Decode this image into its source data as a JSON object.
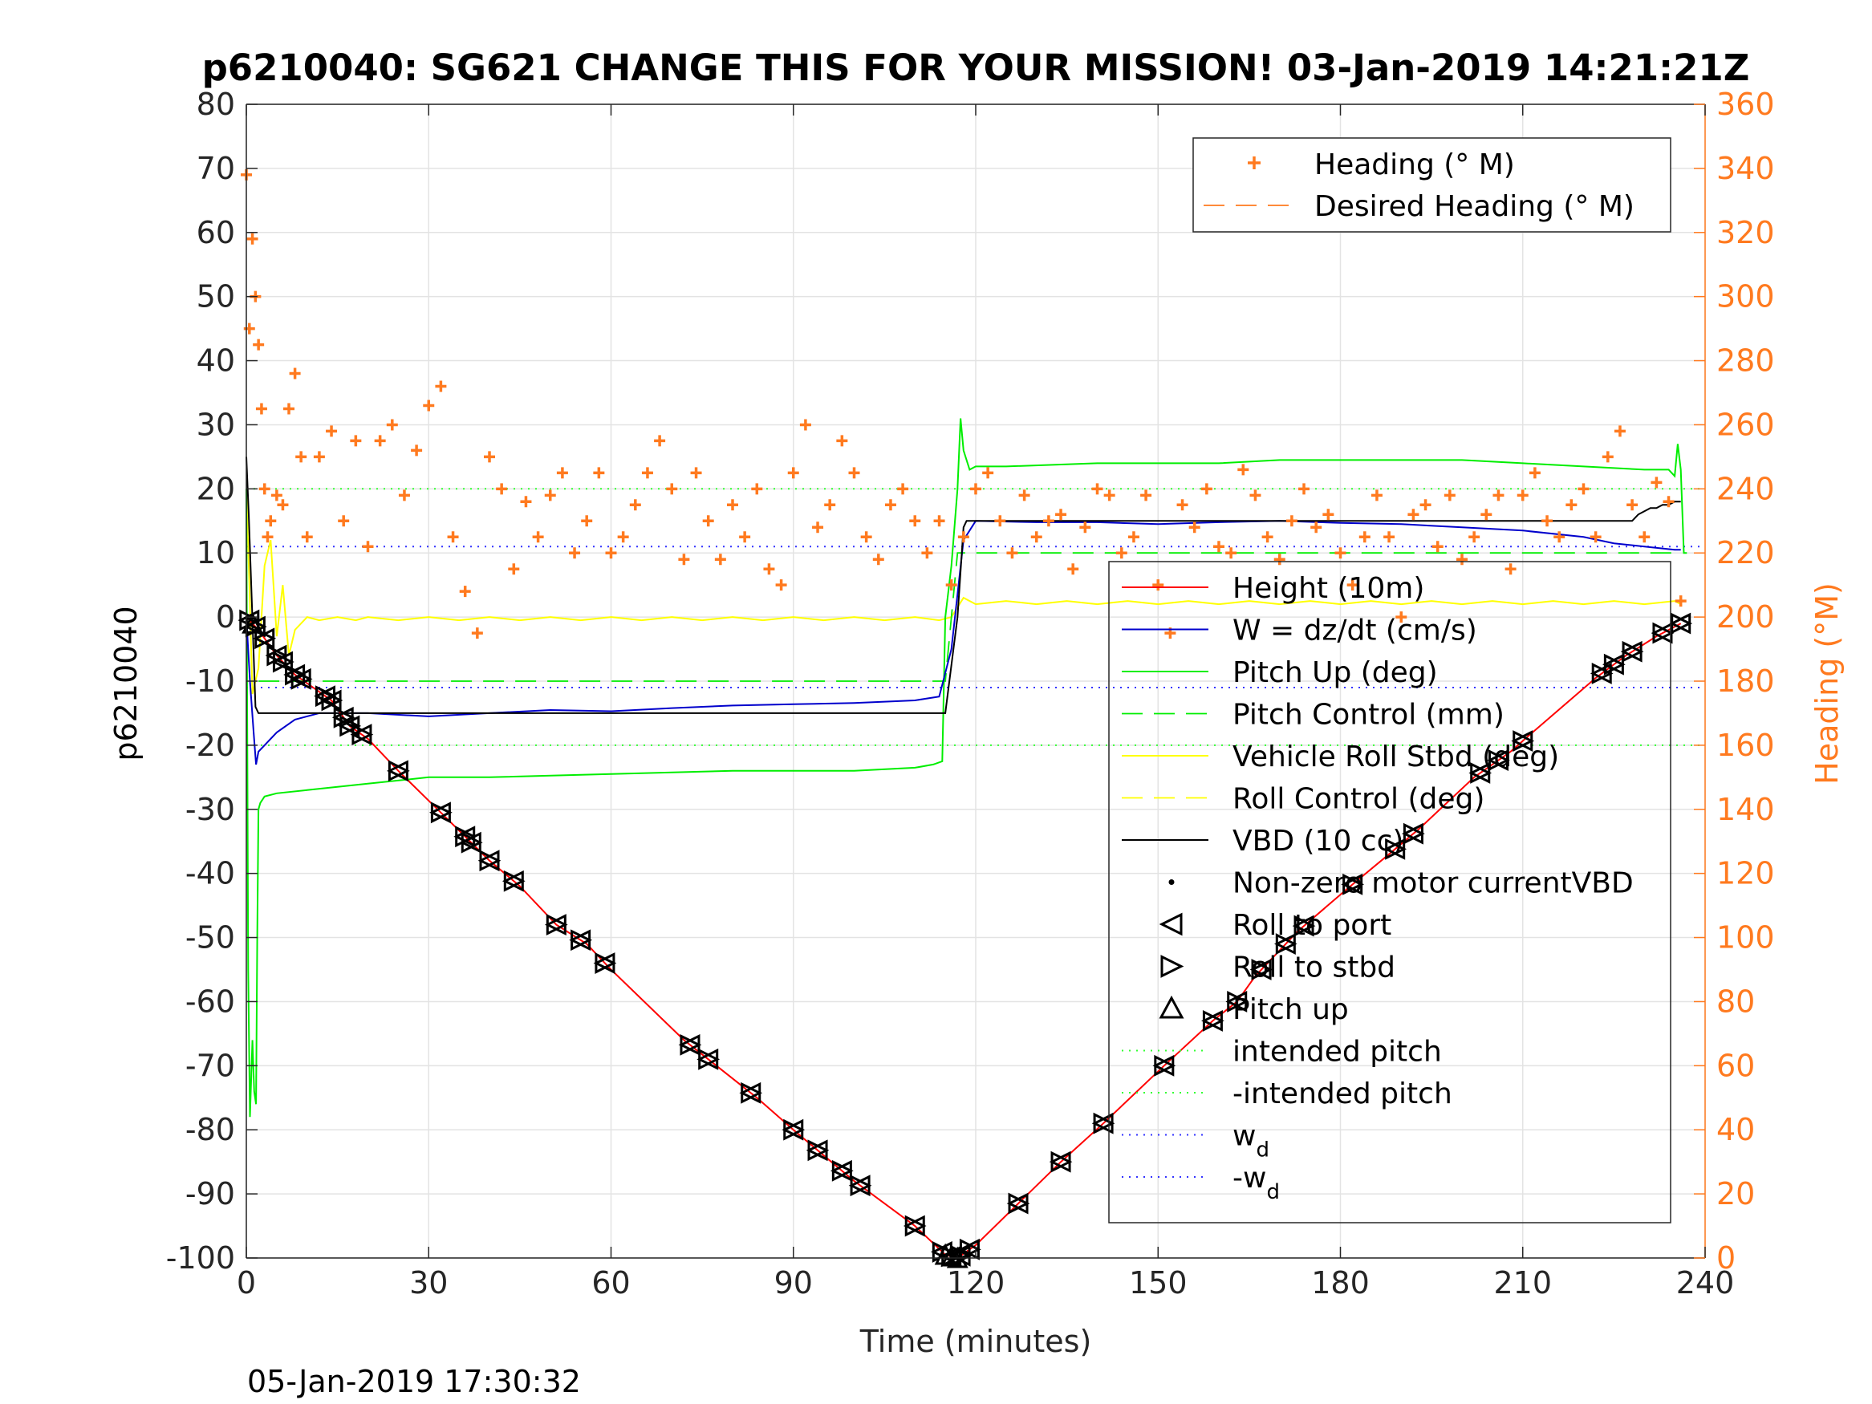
{
  "figure": {
    "title": "p6210040: SG621 CHANGE THIS FOR YOUR MISSION! 03-Jan-2019 14:21:21Z",
    "footer_timestamp": "05-Jan-2019 17:30:32"
  },
  "chart_data": {
    "type": "line",
    "title": "p6210040: SG621 CHANGE THIS FOR YOUR MISSION! 03-Jan-2019 14:21:21Z",
    "xlabel": "Time (minutes)",
    "ylabel": "p6210040",
    "ylabel_right": "Heading (°M)",
    "xlim": [
      0,
      240
    ],
    "ylim": [
      -100,
      80
    ],
    "ylim_right": [
      0,
      360
    ],
    "x_ticks": [
      0,
      30,
      60,
      90,
      120,
      150,
      180,
      210,
      240
    ],
    "x_tick_labels": [
      "0",
      "30",
      "60",
      "90",
      "120",
      "150",
      "180",
      "210",
      "240"
    ],
    "y_ticks": [
      80,
      70,
      60,
      50,
      40,
      30,
      20,
      10,
      0,
      -10,
      -20,
      -30,
      -40,
      -50,
      -60,
      -70,
      -80,
      -90,
      -100
    ],
    "y_tick_labels": [
      "80",
      "70",
      "60",
      "50",
      "40",
      "30",
      "20",
      "10",
      "0",
      "-10",
      "-20",
      "-30",
      "-40",
      "-50",
      "-60",
      "-70",
      "-80",
      "-90",
      "-100"
    ],
    "y_right_ticks": [
      360,
      340,
      320,
      300,
      280,
      260,
      240,
      220,
      200,
      180,
      160,
      140,
      120,
      100,
      80,
      60,
      40,
      20,
      0
    ],
    "y_right_tick_labels": [
      "360",
      "340",
      "320",
      "300",
      "280",
      "260",
      "240",
      "220",
      "200",
      "180",
      "160",
      "140",
      "120",
      "100",
      "80",
      "60",
      "40",
      "20",
      "0"
    ],
    "grid": true,
    "colors": {
      "height": "#ff0000",
      "w": "#0000cc",
      "pitch": "#00ee00",
      "roll": "#ffff00",
      "vbd": "#000000",
      "heading": "#ff7a1f",
      "wd": "#3333ff",
      "intended_pitch": "#33ff33"
    },
    "legend_heading": {
      "position": "top-right",
      "entries": [
        "Heading (° M)",
        "Desired Heading (° M)"
      ]
    },
    "legend_main": {
      "position": "right",
      "entries": [
        "Height (10m)",
        "W = dz/dt (cm/s)",
        "Pitch Up (deg)",
        "Pitch Control (mm)",
        "Vehicle Roll Stbd (deg)",
        "Roll Control (deg)",
        "VBD (10 cc)",
        "Non-zero motor currentVBD",
        "Roll to port",
        "Roll to stbd",
        "Pitch up",
        "intended pitch",
        "-intended pitch",
        "w",
        "-w"
      ],
      "wd_subscript": "d"
    },
    "series": [
      {
        "key": "height",
        "name": "Height (10m)",
        "axis": "left",
        "style": "solid",
        "x": [
          0,
          2,
          5,
          8,
          14,
          17,
          20,
          25,
          32,
          40,
          45,
          51,
          56,
          60,
          72,
          76,
          84,
          90,
          95,
          100,
          110,
          115,
          117,
          120,
          127,
          134,
          141,
          151,
          159,
          163,
          166,
          173,
          181,
          188,
          193,
          202,
          208,
          211,
          222,
          227,
          232,
          236
        ],
        "y": [
          0,
          -2,
          -6,
          -9,
          -13,
          -17,
          -19,
          -24,
          -30.5,
          -38,
          -42,
          -48,
          -51,
          -55,
          -66,
          -69,
          -75,
          -80,
          -84,
          -88,
          -95,
          -99.5,
          -100,
          -98,
          -91.5,
          -85,
          -79,
          -70,
          -63,
          -60,
          -56,
          -49,
          -42.5,
          -37,
          -33,
          -25,
          -21,
          -18.5,
          -9.5,
          -6,
          -3,
          -1
        ]
      },
      {
        "key": "w",
        "name": "W = dz/dt (cm/s)",
        "axis": "left",
        "style": "solid",
        "x": [
          0,
          0.6,
          1.2,
          1.6,
          2,
          3,
          5,
          8,
          12,
          20,
          30,
          40,
          50,
          60,
          70,
          80,
          90,
          100,
          110,
          114,
          116,
          118,
          120,
          130,
          140,
          150,
          160,
          170,
          180,
          190,
          200,
          210,
          220,
          225,
          230,
          235,
          236
        ],
        "y": [
          0,
          -10,
          -18,
          -23,
          -21,
          -20,
          -18,
          -16,
          -15,
          -15,
          -15.5,
          -15,
          -14.5,
          -14.7,
          -14.2,
          -13.8,
          -13.6,
          -13.4,
          -13,
          -12.4,
          -5,
          12,
          15,
          14.8,
          14.8,
          14.5,
          14.8,
          15,
          14.7,
          14.5,
          14,
          13.5,
          12.5,
          11.5,
          11,
          10.5,
          10.5
        ]
      },
      {
        "key": "pitch",
        "name": "Pitch Up (deg)",
        "axis": "left",
        "style": "solid",
        "x": [
          0,
          0.3,
          0.6,
          1,
          1.3,
          1.6,
          1.8,
          2,
          2.3,
          3,
          5,
          10,
          20,
          30,
          40,
          60,
          80,
          100,
          110,
          113,
          114.5,
          115,
          116,
          117,
          117.5,
          118,
          119,
          120,
          125,
          140,
          160,
          170,
          180,
          200,
          210,
          220,
          230,
          234,
          235,
          235.5,
          236,
          236.5,
          237
        ],
        "y": [
          20,
          -55,
          -78,
          -66,
          -74,
          -76,
          -50,
          -30,
          -29,
          -28,
          -27.5,
          -27,
          -26,
          -25,
          -25,
          -24.5,
          -24,
          -24,
          -23.5,
          -23,
          -22.5,
          0,
          8,
          20,
          31,
          26,
          23,
          23.5,
          23.5,
          24,
          24,
          24.5,
          24.5,
          24.5,
          24,
          23.5,
          23,
          23,
          22,
          27,
          23,
          10,
          10
        ]
      },
      {
        "key": "pitch_control",
        "name": "Pitch Control (mm)",
        "axis": "left",
        "style": "dashed",
        "x": [
          2,
          115,
          117,
          236
        ],
        "y": [
          -10,
          -10,
          10,
          10
        ]
      },
      {
        "key": "roll",
        "name": "Vehicle Roll Stbd (deg)",
        "axis": "left",
        "style": "solid",
        "x": [
          0,
          0.5,
          1,
          2,
          3,
          4,
          5,
          6,
          7,
          8,
          10,
          12,
          15,
          18,
          20,
          25,
          30,
          35,
          40,
          45,
          50,
          55,
          60,
          65,
          70,
          75,
          80,
          85,
          90,
          95,
          100,
          105,
          110,
          114,
          116,
          118,
          120,
          125,
          130,
          135,
          140,
          145,
          150,
          155,
          160,
          165,
          170,
          175,
          180,
          185,
          190,
          195,
          200,
          205,
          210,
          215,
          220,
          225,
          230,
          235,
          236
        ],
        "y": [
          20,
          5,
          -12,
          -8,
          8,
          12,
          -3,
          5,
          -6,
          -2,
          0,
          -0.5,
          0,
          -0.5,
          0,
          -0.5,
          0,
          -0.5,
          0,
          -0.5,
          0,
          -0.5,
          0,
          -0.5,
          0,
          -0.5,
          0,
          -0.5,
          0,
          -0.5,
          0,
          -0.5,
          0,
          -0.5,
          0,
          3,
          2,
          2.5,
          2,
          2.5,
          2,
          2.5,
          2,
          2.5,
          2,
          2.5,
          2,
          2.5,
          2,
          2.5,
          2,
          2.5,
          2,
          2.5,
          2,
          2.5,
          2,
          2.5,
          2,
          2.5,
          2
        ]
      },
      {
        "key": "roll_control",
        "name": "Roll Control (deg)",
        "axis": "left",
        "style": "dashed",
        "x": [],
        "y": []
      },
      {
        "key": "vbd",
        "name": "VBD (10 cc)",
        "axis": "left",
        "style": "solid",
        "x": [
          0,
          0.4,
          0.8,
          1.5,
          2,
          50,
          100,
          115,
          117,
          118,
          118.5,
          160,
          200,
          228,
          229,
          230,
          231,
          232,
          233,
          234,
          235,
          236
        ],
        "y": [
          25,
          16,
          5,
          -14,
          -15,
          -15,
          -15,
          -15,
          0,
          14,
          15,
          15,
          15,
          15,
          16,
          16.5,
          17,
          17,
          17.5,
          17.5,
          18,
          18
        ]
      },
      {
        "key": "heading",
        "name": "Heading (° M)",
        "axis": "right",
        "style": "markers",
        "x": [
          0,
          0.5,
          1,
          1.5,
          2,
          2.5,
          3,
          3.5,
          4,
          5,
          6,
          7,
          8,
          9,
          10,
          12,
          14,
          16,
          18,
          20,
          22,
          24,
          26,
          28,
          30,
          32,
          34,
          36,
          38,
          40,
          42,
          44,
          46,
          48,
          50,
          52,
          54,
          56,
          58,
          60,
          62,
          64,
          66,
          68,
          70,
          72,
          74,
          76,
          78,
          80,
          82,
          84,
          86,
          88,
          90,
          92,
          94,
          96,
          98,
          100,
          102,
          104,
          106,
          108,
          110,
          112,
          114,
          116,
          118,
          120,
          122,
          124,
          126,
          128,
          130,
          132,
          134,
          136,
          138,
          140,
          142,
          144,
          146,
          148,
          150,
          152,
          154,
          156,
          158,
          160,
          162,
          164,
          166,
          168,
          170,
          172,
          174,
          176,
          178,
          180,
          182,
          184,
          186,
          188,
          190,
          192,
          194,
          196,
          198,
          200,
          202,
          204,
          206,
          208,
          210,
          212,
          214,
          216,
          218,
          220,
          222,
          224,
          226,
          228,
          230,
          232,
          234,
          236
        ],
        "y": [
          338,
          290,
          318,
          300,
          285,
          265,
          240,
          225,
          230,
          238,
          235,
          265,
          276,
          250,
          225,
          250,
          258,
          230,
          255,
          222,
          255,
          260,
          238,
          252,
          266,
          272,
          225,
          208,
          195,
          250,
          240,
          215,
          236,
          225,
          238,
          245,
          220,
          230,
          245,
          220,
          225,
          235,
          245,
          255,
          240,
          218,
          245,
          230,
          218,
          235,
          225,
          240,
          215,
          210,
          245,
          260,
          228,
          235,
          255,
          245,
          225,
          218,
          235,
          240,
          230,
          220,
          230,
          210,
          225,
          240,
          245,
          230,
          220,
          238,
          225,
          230,
          232,
          215,
          228,
          240,
          238,
          220,
          225,
          238,
          210,
          195,
          235,
          228,
          240,
          222,
          220,
          246,
          238,
          225,
          218,
          230,
          240,
          228,
          232,
          220,
          210,
          225,
          238,
          225,
          200,
          232,
          235,
          222,
          238,
          218,
          225,
          232,
          238,
          215,
          238,
          245,
          230,
          225,
          235,
          240,
          225,
          250,
          258,
          235,
          225,
          242,
          236,
          205
        ]
      },
      {
        "key": "desired_heading",
        "name": "Desired Heading (° M)",
        "axis": "right",
        "style": "dashed",
        "x": [],
        "y": []
      },
      {
        "key": "intended_pitch_pos",
        "name": "intended pitch",
        "axis": "left",
        "style": "dotted",
        "x": [
          0,
          240
        ],
        "y": [
          20,
          20
        ]
      },
      {
        "key": "intended_pitch_neg",
        "name": "-intended pitch",
        "axis": "left",
        "style": "dotted",
        "x": [
          0,
          240
        ],
        "y": [
          -20,
          -20
        ]
      },
      {
        "key": "wd_pos",
        "name": "w",
        "axis": "left",
        "style": "dotted",
        "x": [
          0,
          240
        ],
        "y": [
          11,
          11
        ]
      },
      {
        "key": "wd_neg",
        "name": "-w",
        "axis": "left",
        "style": "dotted",
        "x": [
          0,
          240
        ],
        "y": [
          -11,
          -11
        ]
      }
    ],
    "markers": {
      "roll_events_x": [
        0.5,
        1.5,
        3,
        5,
        6,
        8,
        9,
        13,
        14,
        16,
        17,
        19,
        25,
        32,
        36,
        37,
        40,
        44,
        51,
        55,
        59,
        73,
        76,
        83,
        90,
        94,
        98,
        101,
        110,
        114.5,
        116,
        117.5,
        119,
        127,
        134,
        141,
        151,
        159,
        163,
        167,
        171,
        174,
        182,
        189,
        192,
        203,
        206,
        210,
        223,
        225,
        228,
        233,
        236
      ],
      "pitch_up_x": [
        1,
        115,
        116,
        117
      ]
    }
  }
}
